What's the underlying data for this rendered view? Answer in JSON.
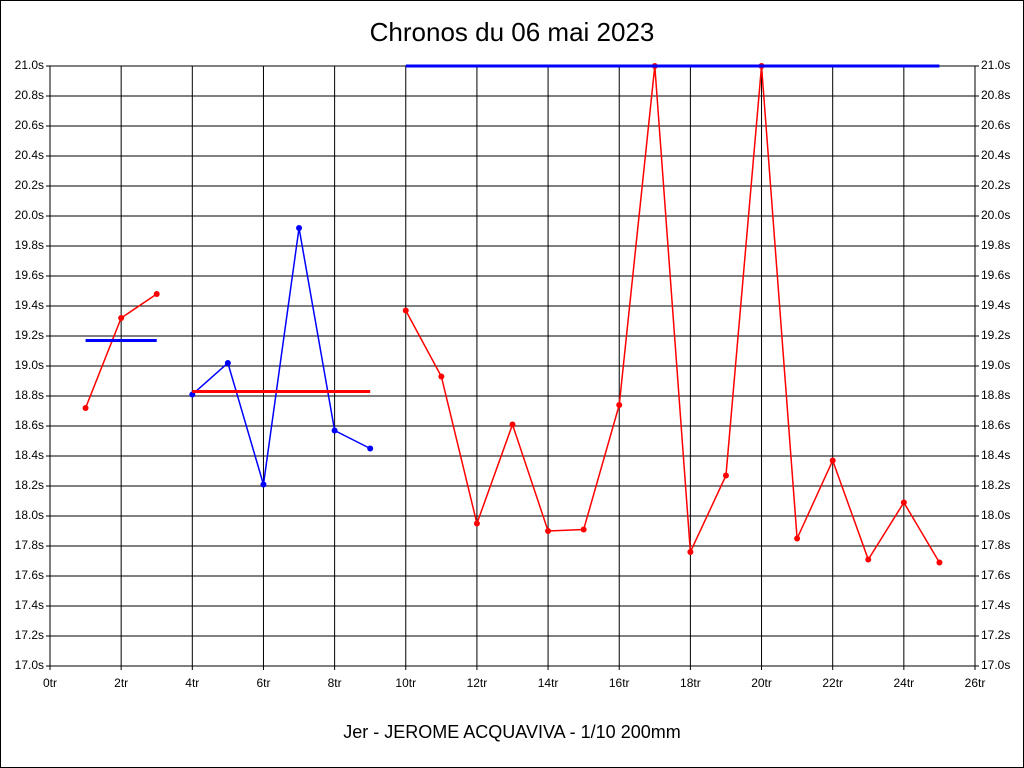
{
  "chart_data": {
    "type": "line",
    "title": "Chronos du 06 mai 2023",
    "x_label": "Jer - JEROME ACQUAVIVA - 1/10 200mm",
    "xlim": [
      0,
      26
    ],
    "xticks": [
      {
        "value": 0,
        "label": "0tr"
      },
      {
        "value": 2,
        "label": "2tr"
      },
      {
        "value": 4,
        "label": "4tr"
      },
      {
        "value": 6,
        "label": "6tr"
      },
      {
        "value": 8,
        "label": "8tr"
      },
      {
        "value": 10,
        "label": "10tr"
      },
      {
        "value": 12,
        "label": "12tr"
      },
      {
        "value": 14,
        "label": "14tr"
      },
      {
        "value": 16,
        "label": "16tr"
      },
      {
        "value": 18,
        "label": "18tr"
      },
      {
        "value": 20,
        "label": "20tr"
      },
      {
        "value": 22,
        "label": "22tr"
      },
      {
        "value": 24,
        "label": "24tr"
      },
      {
        "value": 26,
        "label": "26tr"
      }
    ],
    "ylim": [
      17.0,
      21.0
    ],
    "yticks": [
      {
        "value": 17.0,
        "label": "17.0s"
      },
      {
        "value": 17.2,
        "label": "17.2s"
      },
      {
        "value": 17.4,
        "label": "17.4s"
      },
      {
        "value": 17.6,
        "label": "17.6s"
      },
      {
        "value": 17.8,
        "label": "17.8s"
      },
      {
        "value": 18.0,
        "label": "18.0s"
      },
      {
        "value": 18.2,
        "label": "18.2s"
      },
      {
        "value": 18.4,
        "label": "18.4s"
      },
      {
        "value": 18.6,
        "label": "18.6s"
      },
      {
        "value": 18.8,
        "label": "18.8s"
      },
      {
        "value": 19.0,
        "label": "19.0s"
      },
      {
        "value": 19.2,
        "label": "19.2s"
      },
      {
        "value": 19.4,
        "label": "19.4s"
      },
      {
        "value": 19.6,
        "label": "19.6s"
      },
      {
        "value": 19.8,
        "label": "19.8s"
      },
      {
        "value": 20.0,
        "label": "20.0s"
      },
      {
        "value": 20.2,
        "label": "20.2s"
      },
      {
        "value": 20.4,
        "label": "20.4s"
      },
      {
        "value": 20.6,
        "label": "20.6s"
      },
      {
        "value": 20.8,
        "label": "20.8s"
      },
      {
        "value": 21.0,
        "label": "21.0s"
      }
    ],
    "grid": true,
    "series": [
      {
        "color": "#ff0000",
        "x": [
          1,
          2,
          3
        ],
        "values": [
          18.72,
          19.32,
          19.48
        ]
      },
      {
        "color": "#0000ff",
        "x": [
          4,
          5,
          6,
          7,
          8,
          9
        ],
        "values": [
          18.81,
          19.02,
          18.21,
          19.92,
          18.57,
          18.45
        ]
      },
      {
        "color": "#ff0000",
        "x": [
          10,
          11,
          12,
          13,
          14,
          15,
          16,
          17,
          18,
          19,
          20,
          21,
          22,
          23,
          24,
          25
        ],
        "values": [
          19.37,
          18.93,
          17.95,
          18.61,
          17.9,
          17.91,
          18.74,
          21.0,
          17.76,
          18.27,
          21.0,
          17.85,
          18.37,
          17.71,
          18.09,
          17.69
        ]
      }
    ],
    "averages": [
      {
        "color": "#0000ff",
        "x": [
          1,
          3
        ],
        "value": 19.17
      },
      {
        "color": "#ff0000",
        "x": [
          4,
          9
        ],
        "value": 18.83
      },
      {
        "color": "#0000ff",
        "x": [
          10,
          25
        ],
        "value": 21.0
      }
    ]
  }
}
